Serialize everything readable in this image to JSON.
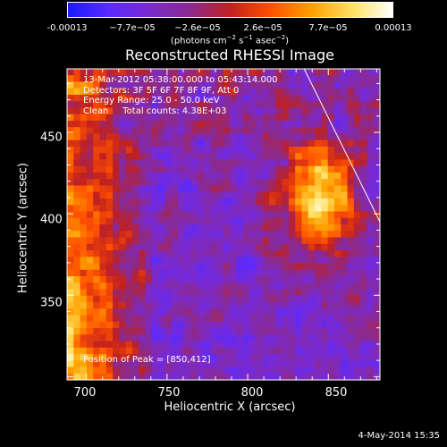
{
  "colorbar": {
    "ticks": [
      "-0.00013",
      "−7.7e−05",
      "−2.6e−05",
      "2.6e−05",
      "7.7e−05",
      "0.00013"
    ],
    "units": "(photons cm",
    "units_exp1": "−2",
    "units_mid": " s",
    "units_exp2": "−1",
    "units_mid2": " asec",
    "units_exp3": "−2",
    "units_end": ")",
    "colors": [
      "#1a1aff",
      "#5a2aff",
      "#7a2ad0",
      "#8a2a90",
      "#c02020",
      "#ff5000",
      "#ffa000",
      "#ffe060",
      "#ffffff"
    ]
  },
  "chart_data": {
    "type": "heatmap",
    "title": "Reconstructed RHESSI Image",
    "xlabel": "Heliocentric X (arcsec)",
    "ylabel": "Heliocentric Y (arcsec)",
    "x_ticks": [
      700,
      750,
      800,
      850
    ],
    "y_ticks": [
      350,
      400,
      450
    ],
    "xlim": [
      688,
      882
    ],
    "ylim": [
      298,
      489
    ],
    "value_range": [
      -0.00013,
      0.00013
    ],
    "peak_position": [
      850,
      412
    ],
    "limb_line": [
      [
        835,
        489
      ],
      [
        882,
        395
      ]
    ]
  },
  "info": {
    "line1": "13-Mar-2012 05:38:00.000 to 05:43:14.000",
    "line2": "Detectors: 3F 5F 6F 7F 8F 9F, Att 0",
    "line3": "Energy Range: 25.0 - 50.0 keV",
    "line4": "Clean     Total counts: 4.38E+03",
    "peak": "Position of Peak = [850,412]"
  },
  "footer": {
    "timestamp": "4-May-2014 15:35"
  }
}
